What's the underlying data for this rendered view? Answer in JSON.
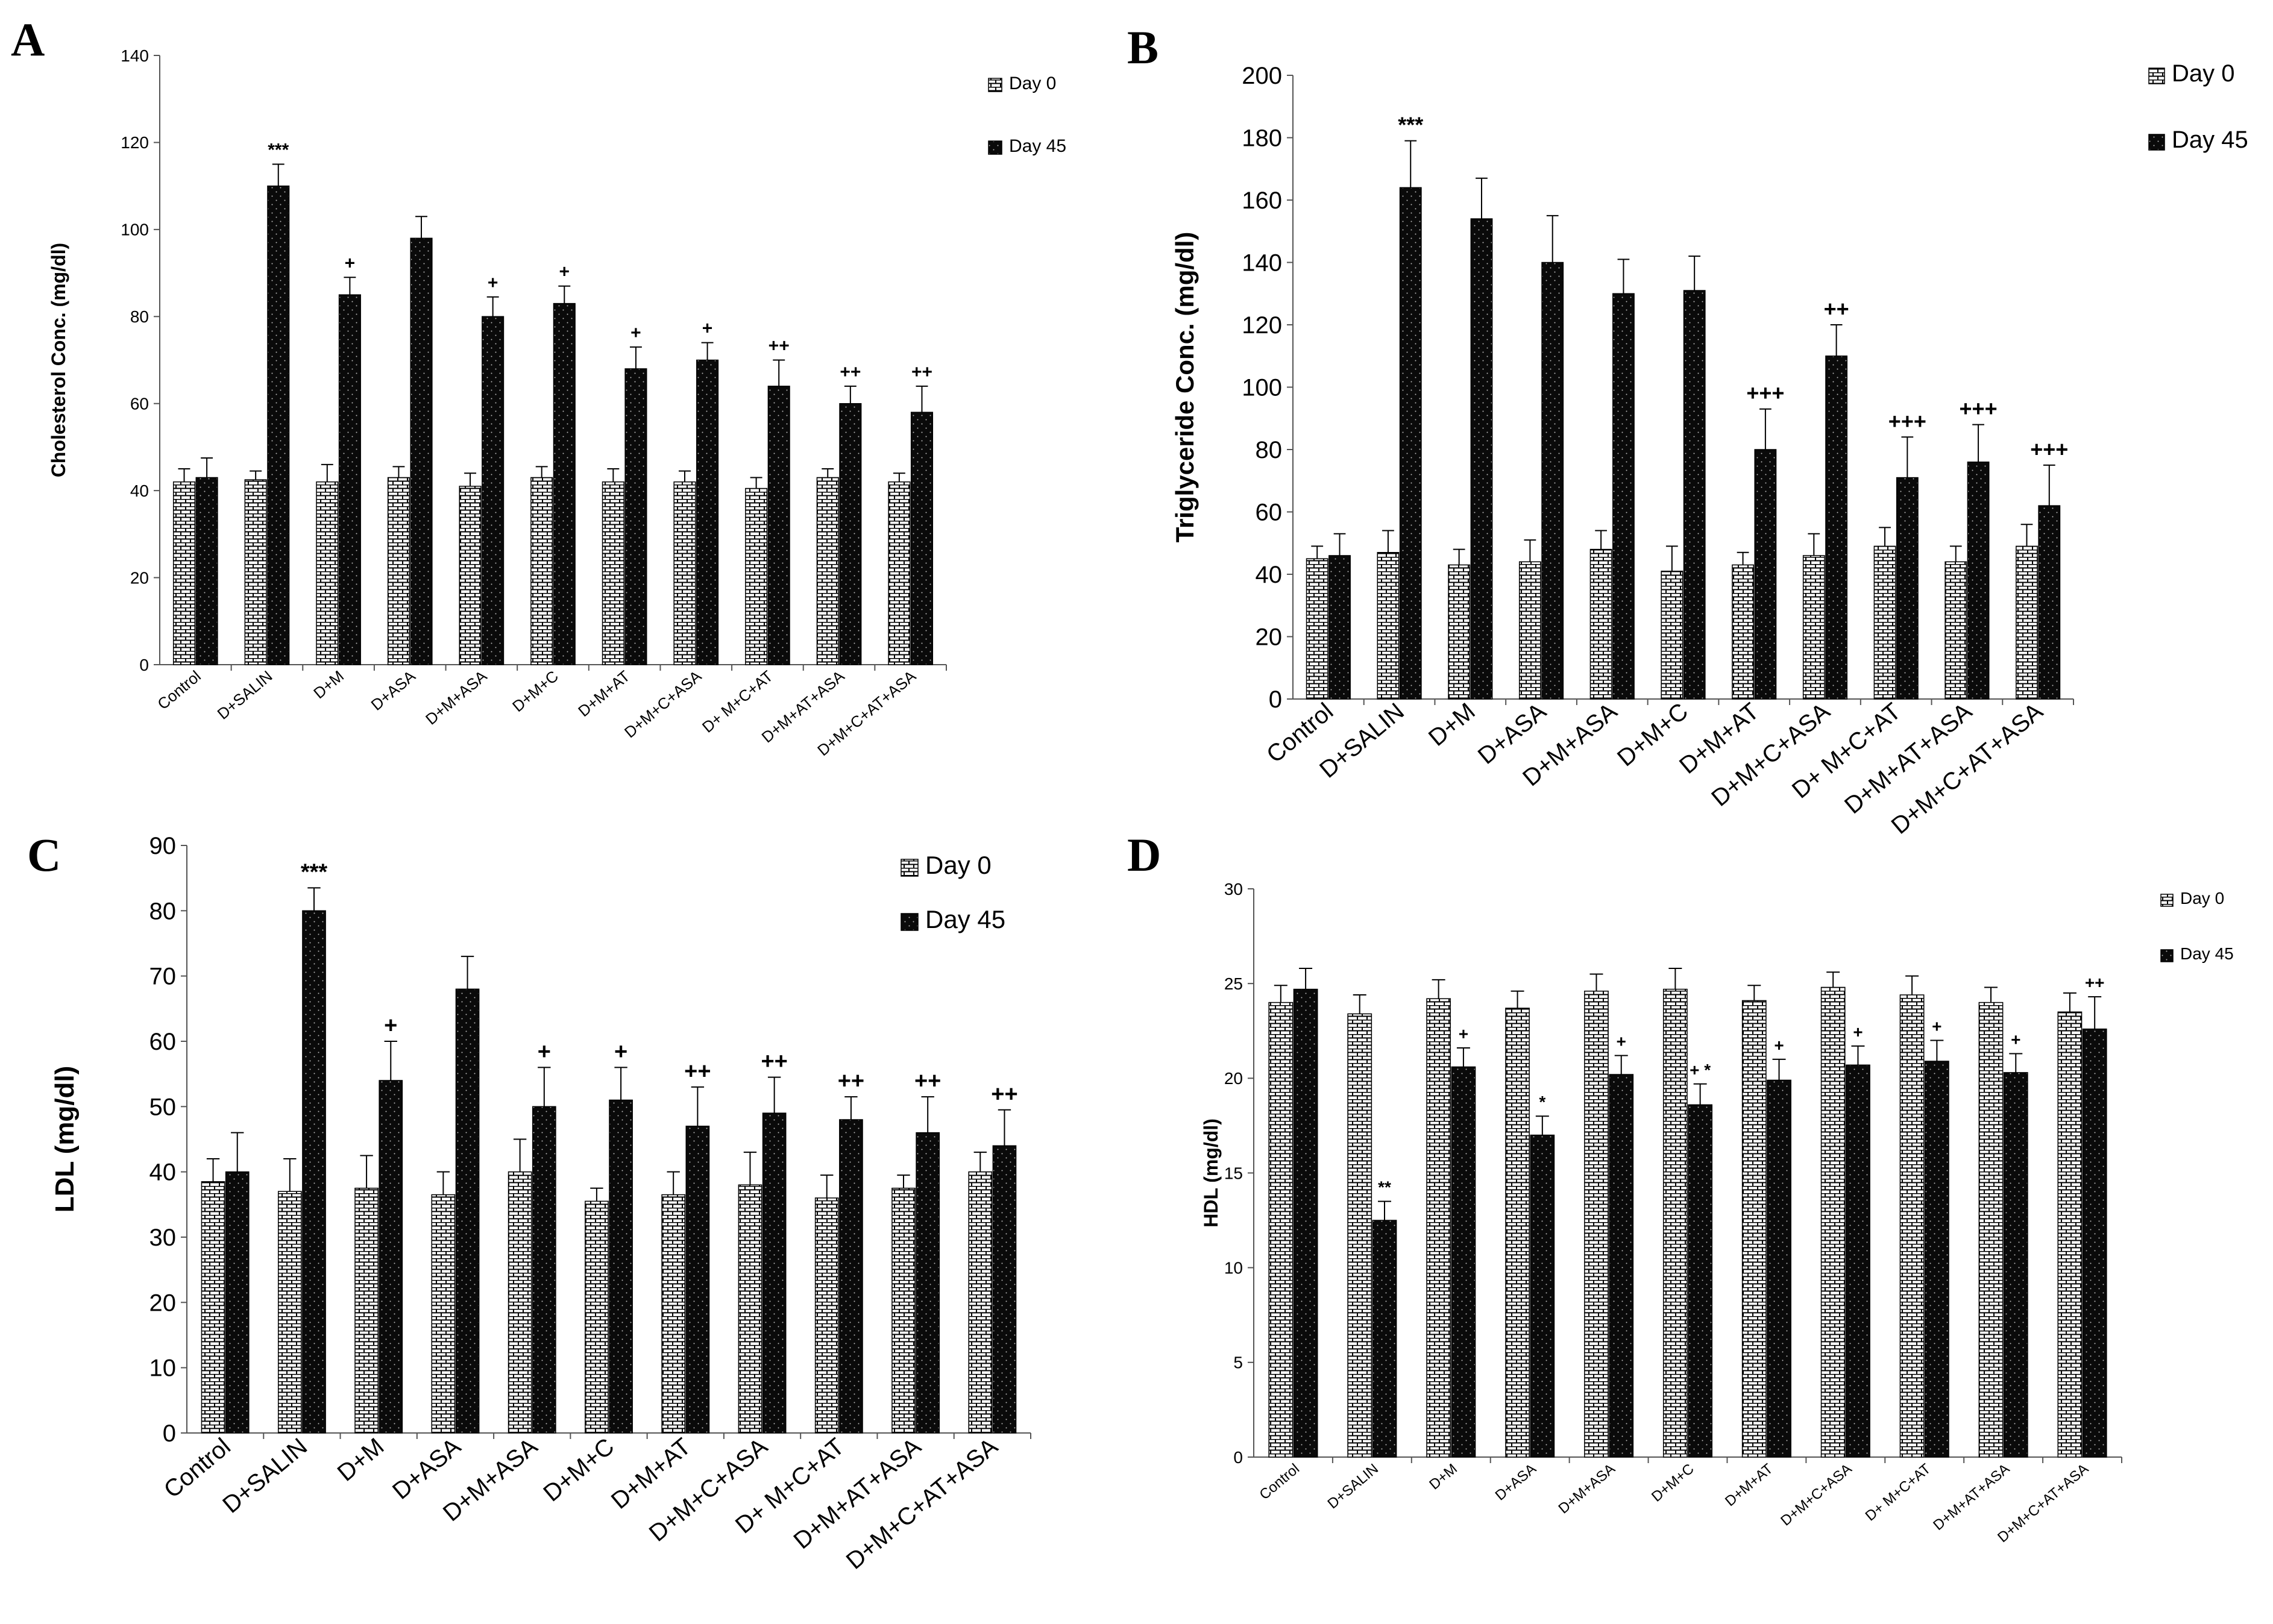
{
  "figure": {
    "series_names": [
      "Day 0",
      "Day 45"
    ]
  },
  "chart_data": [
    {
      "panel": "A",
      "type": "bar",
      "ylabel": "Cholesterol Conc. (mg/dl)",
      "ylim": [
        0,
        140
      ],
      "yticks": [
        0,
        20,
        40,
        60,
        80,
        100,
        120,
        140
      ],
      "categories": [
        "Control",
        "D+SALIN",
        "D+M",
        "D+ASA",
        "D+M+ASA",
        "D+M+C",
        "D+M+AT",
        "D+M+C+ASA",
        "D+ M+C+AT",
        "D+M+AT+ASA",
        "D+M+C+AT+ASA"
      ],
      "series": [
        {
          "name": "Day 0",
          "pattern": "brick",
          "values": [
            42,
            42.5,
            42,
            43,
            41,
            43,
            42,
            42,
            40.5,
            43,
            42
          ],
          "errors": [
            3,
            2,
            4,
            2.5,
            3,
            2.5,
            3,
            2.5,
            2.5,
            2,
            2
          ]
        },
        {
          "name": "Day 45",
          "pattern": "dark",
          "values": [
            43,
            110,
            85,
            98,
            80,
            83,
            68,
            70,
            64,
            60,
            58
          ],
          "errors": [
            4.5,
            5,
            4,
            5,
            4.5,
            4,
            5,
            4,
            6,
            4,
            6
          ]
        }
      ],
      "annotations": [
        "",
        "***",
        "+",
        "",
        "+",
        "+",
        "+",
        "+",
        "++",
        "++",
        "++"
      ]
    },
    {
      "panel": "B",
      "type": "bar",
      "ylabel": "Triglyceride Conc. (mg/dl)",
      "ylim": [
        0,
        200
      ],
      "yticks": [
        0,
        20,
        40,
        60,
        80,
        100,
        120,
        140,
        160,
        180,
        200
      ],
      "categories": [
        "Control",
        "D+SALIN",
        "D+M",
        "D+ASA",
        "D+M+ASA",
        "D+M+C",
        "D+M+AT",
        "D+M+C+ASA",
        "D+ M+C+AT",
        "D+M+AT+ASA",
        "D+M+C+AT+ASA"
      ],
      "series": [
        {
          "name": "Day 0",
          "pattern": "brick",
          "values": [
            45,
            47,
            43,
            44,
            48,
            41,
            43,
            46,
            49,
            44,
            49
          ],
          "errors": [
            4,
            7,
            5,
            7,
            6,
            8,
            4,
            7,
            6,
            5,
            7
          ]
        },
        {
          "name": "Day 45",
          "pattern": "dark",
          "values": [
            46,
            164,
            154,
            140,
            130,
            131,
            80,
            110,
            71,
            76,
            62
          ],
          "errors": [
            7,
            15,
            13,
            15,
            11,
            11,
            13,
            10,
            13,
            12,
            13
          ]
        }
      ],
      "annotations": [
        "",
        "***",
        "",
        "",
        "",
        "",
        "+++",
        "++",
        "+++",
        "+++",
        "+++"
      ]
    },
    {
      "panel": "C",
      "type": "bar",
      "ylabel": "LDL (mg/dl)",
      "ylim": [
        0,
        90
      ],
      "yticks": [
        0,
        10,
        20,
        30,
        40,
        50,
        60,
        70,
        80,
        90
      ],
      "categories": [
        "Control",
        "D+SALIN",
        "D+M",
        "D+ASA",
        "D+M+ASA",
        "D+M+C",
        "D+M+AT",
        "D+M+C+ASA",
        "D+ M+C+AT",
        "D+M+AT+ASA",
        "D+M+C+AT+ASA"
      ],
      "series": [
        {
          "name": "Day 0",
          "pattern": "brick",
          "values": [
            38.5,
            37,
            37.5,
            36.5,
            40,
            35.5,
            36.5,
            38,
            36,
            37.5,
            40
          ],
          "errors": [
            3.5,
            5,
            5,
            3.5,
            5,
            2,
            3.5,
            5,
            3.5,
            2,
            3
          ]
        },
        {
          "name": "Day 45",
          "pattern": "dark",
          "values": [
            40,
            80,
            54,
            68,
            50,
            51,
            47,
            49,
            48,
            46,
            44
          ],
          "errors": [
            6,
            3.5,
            6,
            5,
            6,
            5,
            6,
            5.5,
            3.5,
            5.5,
            5.5
          ]
        }
      ],
      "annotations": [
        "",
        "***",
        "+",
        "",
        "+",
        "+",
        "++",
        "++",
        "++",
        "++",
        "++"
      ]
    },
    {
      "panel": "D",
      "type": "bar",
      "ylabel": "HDL (mg/dl)",
      "ylim": [
        0,
        30
      ],
      "yticks": [
        0,
        5,
        10,
        15,
        20,
        25,
        30
      ],
      "categories": [
        "Control",
        "D+SALIN",
        "D+M",
        "D+ASA",
        "D+M+ASA",
        "D+M+C",
        "D+M+AT",
        "D+M+C+ASA",
        "D+ M+C+AT",
        "D+M+AT+ASA",
        "D+M+C+AT+ASA"
      ],
      "series": [
        {
          "name": "Day 0",
          "pattern": "brick",
          "values": [
            24,
            23.4,
            24.2,
            23.7,
            24.6,
            24.7,
            24.1,
            24.8,
            24.4,
            24,
            23.5
          ],
          "errors": [
            0.9,
            1,
            1,
            0.9,
            0.9,
            1.1,
            0.8,
            0.8,
            1,
            0.8,
            1
          ]
        },
        {
          "name": "Day 45",
          "pattern": "dark",
          "values": [
            24.7,
            12.5,
            20.6,
            17,
            20.2,
            18.6,
            19.9,
            20.7,
            20.9,
            20.3,
            22.6
          ],
          "errors": [
            1.1,
            1,
            1,
            1,
            1,
            1.1,
            1.1,
            1,
            1.1,
            1,
            1.7
          ]
        }
      ],
      "annotations": [
        "",
        "**",
        "+",
        "*",
        "+",
        "+ *",
        "+",
        "+",
        "+",
        "+",
        "++"
      ]
    }
  ]
}
